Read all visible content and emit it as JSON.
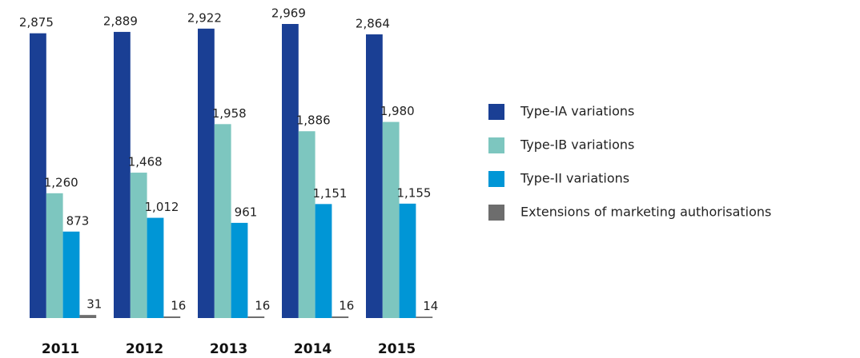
{
  "chart_data": {
    "type": "bar",
    "categories": [
      "2011",
      "2012",
      "2013",
      "2014",
      "2015"
    ],
    "series": [
      {
        "name": "Type-IA variations",
        "color": "#1a3f94",
        "values": [
          2875,
          2889,
          2922,
          2969,
          2864
        ],
        "value_labels": [
          "2,875",
          "2,889",
          "2,922",
          "2,969",
          "2,864"
        ]
      },
      {
        "name": "Type-IB variations",
        "color": "#7dc6bf",
        "values": [
          1260,
          1468,
          1958,
          1886,
          1980
        ],
        "value_labels": [
          "1,260",
          "1,468",
          "1,958",
          "1,886",
          "1,980"
        ]
      },
      {
        "name": "Type-II variations",
        "color": "#0096d6",
        "values": [
          873,
          1012,
          961,
          1151,
          1155
        ],
        "value_labels": [
          "873",
          "1,012",
          "961",
          "1,151",
          "1,155"
        ]
      },
      {
        "name": "Extensions of marketing authorisations",
        "color": "#6d6d6d",
        "values": [
          31,
          16,
          16,
          16,
          14
        ],
        "value_labels": [
          "31",
          "16",
          "16",
          "16",
          "14"
        ]
      }
    ]
  }
}
